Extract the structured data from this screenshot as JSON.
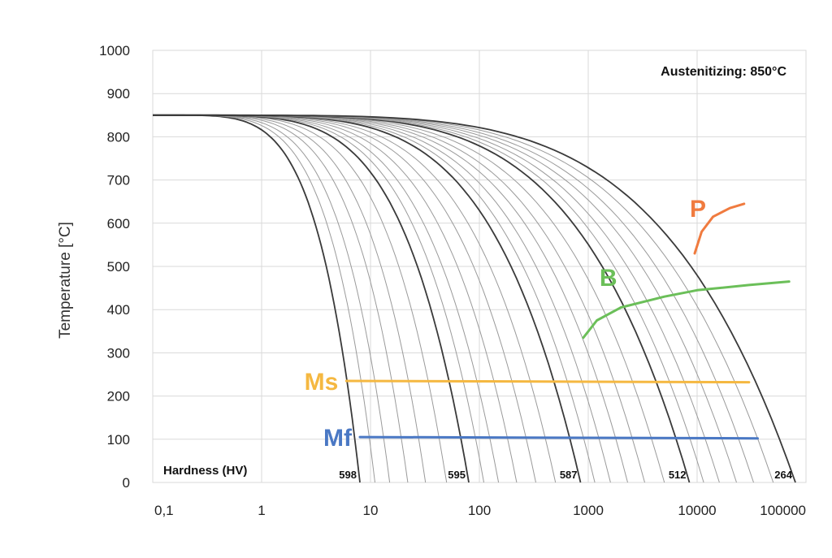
{
  "chart_data": {
    "type": "line",
    "title": "Austenitizing: 850°C",
    "xlabel": "",
    "ylabel": "Temperature [°C]",
    "x_scale": "log",
    "xlim": [
      0.1,
      100000
    ],
    "ylim": [
      0,
      1000
    ],
    "x_ticks": [
      "0,1",
      "1",
      "10",
      "100",
      "1000",
      "10000",
      "100000"
    ],
    "x_tick_values": [
      0.1,
      1,
      10,
      100,
      1000,
      10000,
      100000
    ],
    "y_ticks": [
      "0",
      "100",
      "200",
      "300",
      "400",
      "500",
      "600",
      "700",
      "800",
      "900",
      "1000"
    ],
    "grid": true,
    "hardness_label": "Hardness (HV)",
    "start_temperature": 850,
    "cooling_curves": [
      {
        "hardness": "598",
        "x_at_zero": 8,
        "emphasized": true
      },
      {
        "hardness": "",
        "x_at_zero": 11,
        "emphasized": false
      },
      {
        "hardness": "",
        "x_at_zero": 15,
        "emphasized": false
      },
      {
        "hardness": "",
        "x_at_zero": 22,
        "emphasized": false
      },
      {
        "hardness": "",
        "x_at_zero": 32,
        "emphasized": false
      },
      {
        "hardness": "",
        "x_at_zero": 50,
        "emphasized": false
      },
      {
        "hardness": "595",
        "x_at_zero": 80,
        "emphasized": true
      },
      {
        "hardness": "",
        "x_at_zero": 110,
        "emphasized": false
      },
      {
        "hardness": "",
        "x_at_zero": 150,
        "emphasized": false
      },
      {
        "hardness": "",
        "x_at_zero": 220,
        "emphasized": false
      },
      {
        "hardness": "",
        "x_at_zero": 330,
        "emphasized": false
      },
      {
        "hardness": "",
        "x_at_zero": 500,
        "emphasized": false
      },
      {
        "hardness": "587",
        "x_at_zero": 850,
        "emphasized": true
      },
      {
        "hardness": "",
        "x_at_zero": 1150,
        "emphasized": false
      },
      {
        "hardness": "",
        "x_at_zero": 1600,
        "emphasized": false
      },
      {
        "hardness": "",
        "x_at_zero": 2300,
        "emphasized": false
      },
      {
        "hardness": "",
        "x_at_zero": 3300,
        "emphasized": false
      },
      {
        "hardness": "",
        "x_at_zero": 5000,
        "emphasized": false
      },
      {
        "hardness": "512",
        "x_at_zero": 8500,
        "emphasized": true
      },
      {
        "hardness": "",
        "x_at_zero": 11500,
        "emphasized": false
      },
      {
        "hardness": "",
        "x_at_zero": 16000,
        "emphasized": false
      },
      {
        "hardness": "",
        "x_at_zero": 23000,
        "emphasized": false
      },
      {
        "hardness": "",
        "x_at_zero": 33000,
        "emphasized": false
      },
      {
        "hardness": "",
        "x_at_zero": 50000,
        "emphasized": false
      },
      {
        "hardness": "264",
        "x_at_zero": 80000,
        "emphasized": true
      }
    ],
    "transformation_lines": [
      {
        "name": "P",
        "color": "#f07b3f",
        "points": [
          [
            9500,
            530
          ],
          [
            11000,
            580
          ],
          [
            14000,
            615
          ],
          [
            20000,
            635
          ],
          [
            27000,
            645
          ]
        ]
      },
      {
        "name": "B",
        "color": "#6bbf59",
        "points": [
          [
            900,
            335
          ],
          [
            1200,
            375
          ],
          [
            2000,
            405
          ],
          [
            5000,
            430
          ],
          [
            10000,
            445
          ],
          [
            30000,
            457
          ],
          [
            70000,
            465
          ]
        ]
      },
      {
        "name": "Ms",
        "color": "#f5b841",
        "points": [
          [
            6,
            235
          ],
          [
            30000,
            232
          ]
        ]
      },
      {
        "name": "Mf",
        "color": "#4a78c4",
        "points": [
          [
            8,
            105
          ],
          [
            36000,
            102
          ]
        ]
      }
    ]
  }
}
